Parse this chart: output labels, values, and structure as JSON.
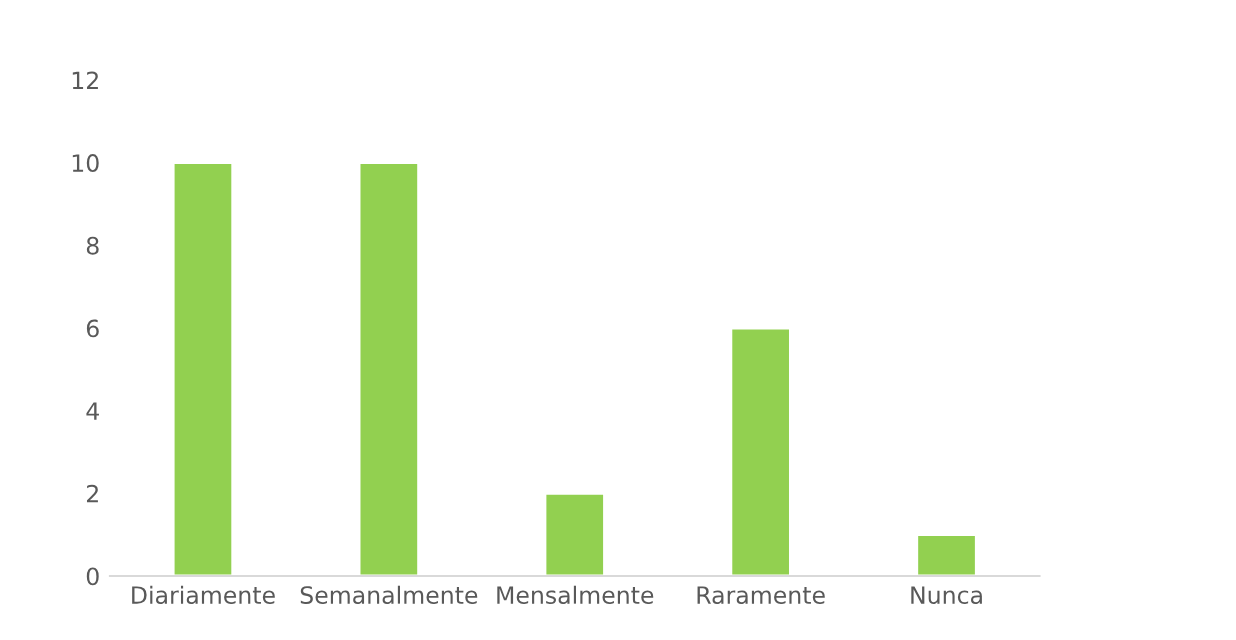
{
  "chart_data": {
    "type": "bar",
    "categories": [
      "Diariamente",
      "Semanalmente",
      "Mensalmente",
      "Raramente",
      "Nunca"
    ],
    "values": [
      10,
      10,
      2,
      6,
      1
    ],
    "color": "#92d050",
    "ylim": [
      0,
      12
    ],
    "yticks": [
      0,
      2,
      4,
      6,
      8,
      10,
      12
    ],
    "grid": false
  }
}
